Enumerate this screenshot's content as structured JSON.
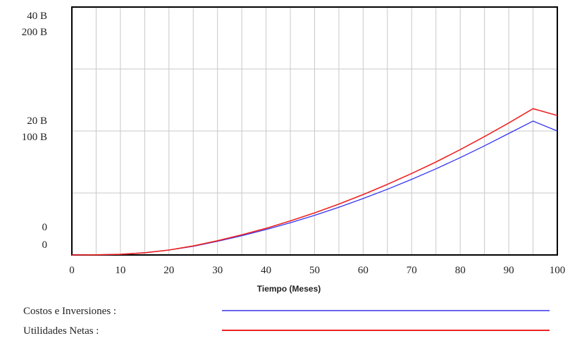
{
  "chart_data": {
    "type": "line",
    "title": "",
    "xlabel": "Tiempo (Meses)",
    "ylabel": "",
    "x": [
      0,
      5,
      10,
      15,
      20,
      25,
      30,
      35,
      40,
      45,
      50,
      55,
      60,
      65,
      70,
      75,
      80,
      85,
      90,
      95,
      100
    ],
    "xlim": [
      0,
      100
    ],
    "xticks": [
      "0",
      "10",
      "20",
      "30",
      "40",
      "50",
      "60",
      "70",
      "80",
      "90",
      "100"
    ],
    "y_axis_labels": {
      "left_top": [
        "40 B",
        "200 B"
      ],
      "left_mid": [
        "20 B",
        "100 B"
      ],
      "left_bottom": [
        "0",
        "0"
      ]
    },
    "grid": true,
    "series": [
      {
        "name": "Costos e Inversiones :",
        "color": "#3333ee",
        "axis_max": 200,
        "unit": "B",
        "values": [
          0,
          0.1,
          0.5,
          1.8,
          4.0,
          7.0,
          11.0,
          15.5,
          20.5,
          26.0,
          32.0,
          38.5,
          45.5,
          53.0,
          61.0,
          69.5,
          78.5,
          88.0,
          98.0,
          108.0,
          100.0
        ]
      },
      {
        "name": "Utilidades Netas :",
        "color": "#ee2222",
        "axis_max": 40,
        "unit": "B",
        "values": [
          0,
          0.02,
          0.1,
          0.35,
          0.8,
          1.45,
          2.3,
          3.25,
          4.3,
          5.5,
          6.8,
          8.2,
          9.75,
          11.4,
          13.15,
          15.0,
          17.0,
          19.1,
          21.3,
          23.6,
          22.5
        ]
      }
    ],
    "legend_placement": "bottom"
  }
}
